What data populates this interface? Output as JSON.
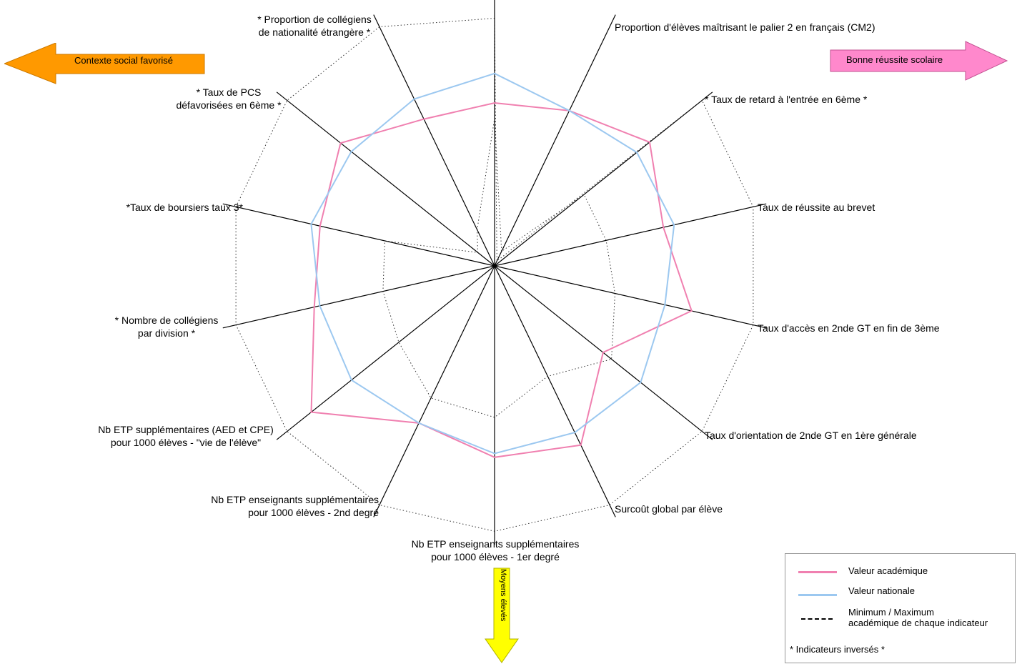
{
  "chart_data": {
    "type": "radar",
    "axes": [
      {
        "label": "Proportion d'élèves maîtrisant le palier 2 en français (CM2)",
        "academique": 0.608,
        "nationale": 0.718,
        "min": 0.55,
        "max": 0.924
      },
      {
        "label": "* Taux de retard à l'entrée en 6ème *",
        "academique": 0.643,
        "nationale": 0.643,
        "min": 0.06,
        "max": 0.02
      },
      {
        "label": "Taux de réussite au brevet",
        "academique": 0.74,
        "nationale": 0.679,
        "min": 0.427,
        "max": 0.99
      },
      {
        "label": "Taux d'accès en 2nde GT en fin de 3ème",
        "academique": 0.646,
        "nationale": 0.687,
        "min": 0.427,
        "max": 0.99
      },
      {
        "label": "Taux d'orientation de 2nde GT en 1ère générale",
        "academique": 0.754,
        "nationale": 0.652,
        "min": 0.461,
        "max": 0.99
      },
      {
        "label": "Surcoût global par élève",
        "academique": 0.518,
        "nationale": 0.697,
        "min": 0.558,
        "max": 0.99
      },
      {
        "label": "Nb ETP enseignants supplémentaires pour 1000 élèves - 1er degré",
        "academique": 0.742,
        "nationale": 0.69,
        "min": 0.457,
        "max": 0.99
      },
      {
        "label": "Nb ETP enseignants supplémentaires pour 1000 élèves - 2nd degré",
        "academique": 0.714,
        "nationale": 0.7,
        "min": 0.565,
        "max": 0.99
      },
      {
        "label": "Nb ETP supplémentaires (AED et CPE) pour 1000 élèves - \"vie de l'élève\"",
        "academique": 0.651,
        "nationale": 0.651,
        "min": 0.547,
        "max": 0.99
      },
      {
        "label": "* Nombre de collégiens par division *",
        "academique": 0.875,
        "nationale": 0.683,
        "min": 0.457,
        "max": 0.99
      },
      {
        "label": "*Taux de boursiers taux 3*",
        "academique": 0.69,
        "nationale": 0.669,
        "min": 0.427,
        "max": 0.99
      },
      {
        "label": "* Taux de PCS défavorisées en 6ème *",
        "academique": 0.668,
        "nationale": 0.702,
        "min": 0.42,
        "max": 0.99
      },
      {
        "label": "* Proportion de collégiens de nationalité étrangère *",
        "academique": 0.735,
        "nationale": 0.684,
        "min": 0.08,
        "max": 0.99
      },
      {
        "label": "",
        "academique": 0.608,
        "nationale": 0.691,
        "min": 0.15,
        "max": 0.99
      }
    ],
    "range": [
      0,
      1
    ],
    "series": [
      {
        "name": "Valeur académique",
        "key": "academique",
        "color": "#f080b0"
      },
      {
        "name": "Valeur nationale",
        "key": "nationale",
        "color": "#9cc8f0"
      },
      {
        "name": "Minimum / Maximum académique  de chaque indicateur",
        "key": "minmax",
        "color": "#000000"
      }
    ],
    "legend_position": "bottom-right"
  },
  "labels": {
    "l0": "Proportion d'élèves maîtrisant le palier 2 en français (CM2)",
    "l1": "* Taux de retard à l'entrée en 6ème *",
    "l2": "Taux de réussite au brevet",
    "l3": "Taux d'accès en 2nde GT en fin de 3ème",
    "l4": "Taux d'orientation de 2nde GT en 1ère générale",
    "l5": "Surcoût global par élève",
    "l6a": "Nb ETP enseignants supplémentaires",
    "l6b": "pour 1000 élèves - 1er degré",
    "l7a": "Nb ETP enseignants supplémentaires",
    "l7b": "pour 1000 élèves - 2nd degré",
    "l8a": "Nb ETP supplémentaires (AED et CPE)",
    "l8b": "pour 1000 élèves - \"vie de l'élève\"",
    "l9a": "* Nombre de collégiens",
    "l9b": "par division *",
    "l10": "*Taux de boursiers taux 3*",
    "l11a": "* Taux de PCS",
    "l11b": "défavorisées en 6ème *",
    "l12a": "* Proportion de collégiens",
    "l12b": "de nationalité étrangère *"
  },
  "arrows": {
    "left": {
      "text": "Contexte social favorisé",
      "color": "#ff9900"
    },
    "right": {
      "text": "Bonne réussite scolaire",
      "color": "#ff88cc"
    },
    "down": {
      "text": "Moyens élevés",
      "color": "#ffff00"
    }
  },
  "legend": {
    "academique": "Valeur académique",
    "nationale": "Valeur nationale",
    "minmax_1": "Minimum / Maximum",
    "minmax_2": "académique  de chaque indicateur",
    "note": "* Indicateurs inversés *"
  }
}
